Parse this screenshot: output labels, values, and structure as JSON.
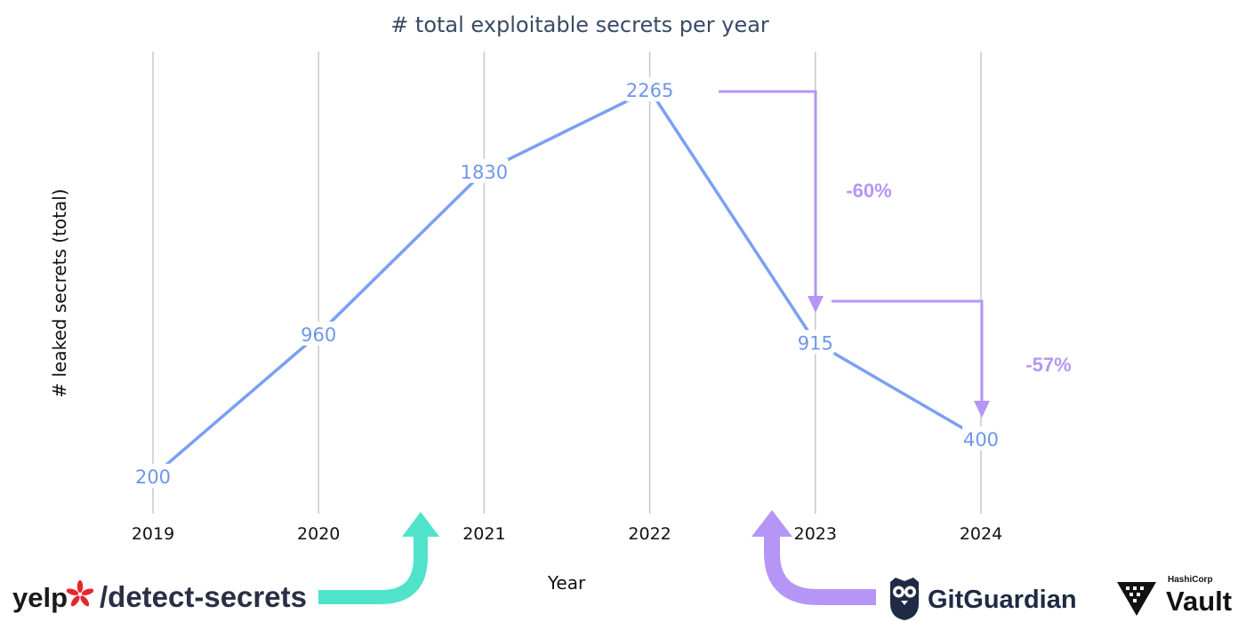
{
  "chart_data": {
    "type": "line",
    "title": "# total exploitable secrets per year",
    "xlabel": "Year",
    "ylabel": "# leaked secrets (total)",
    "categories": [
      "2019",
      "2020",
      "2021",
      "2022",
      "2023",
      "2024"
    ],
    "values": [
      200,
      960,
      1830,
      2265,
      915,
      400
    ],
    "data_labels": [
      "200",
      "960",
      "1830",
      "2265",
      "915",
      "400"
    ],
    "ylim": [
      0,
      2500
    ],
    "grid": "vertical",
    "annotations": [
      {
        "text": "-60%",
        "from": "2022",
        "to": "2023"
      },
      {
        "text": "-57%",
        "from": "2023",
        "to": "2024"
      }
    ]
  },
  "colors": {
    "line": "#7aa0f3",
    "data_label": "#6f96ee",
    "grid": "#c8c8c8",
    "annotation": "#b596f6",
    "teal_arrow": "#4fe3cc",
    "purple_arrow": "#b596f6",
    "logo_dark": "#1a1a1a",
    "yelp_burst": "#e8242e"
  },
  "logos": {
    "yelp_word": "yelp",
    "yelp_suffix": "/detect-secrets",
    "gitguardian": "GitGuardian",
    "hashicorp": "HashiCorp",
    "vault": "Vault",
    "yelp_icon": "yelp-burst-icon",
    "gitguardian_icon": "gitguardian-owl-icon",
    "vault_icon": "vault-triangle-icon"
  }
}
